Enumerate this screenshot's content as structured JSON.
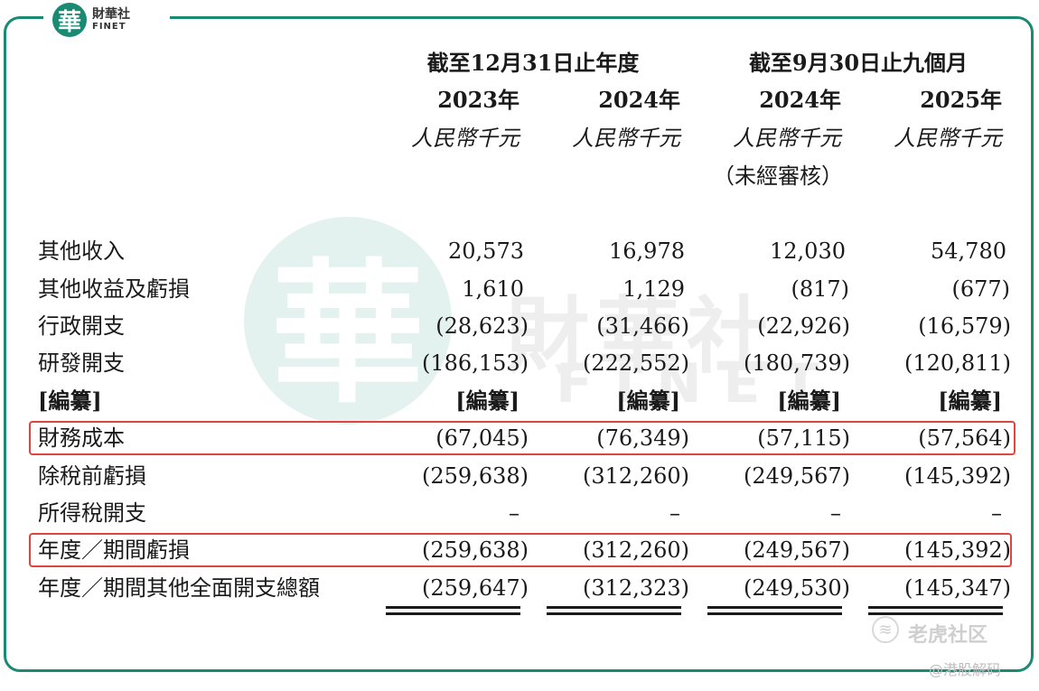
{
  "logo": {
    "mark": "華",
    "cn": "財華社",
    "en": "FINET"
  },
  "watermark": {
    "mark": "華",
    "cn": "財華社",
    "en": "FINET"
  },
  "header": {
    "group1": "截至12月31日止年度",
    "group2": "截至9月30日止九個月",
    "years": [
      "2023年",
      "2024年",
      "2024年",
      "2025年"
    ],
    "units": [
      "人民幣千元",
      "人民幣千元",
      "人民幣千元",
      "人民幣千元"
    ],
    "unaudited": "（未經審核）"
  },
  "rows": [
    {
      "label": "其他收入",
      "values": [
        "20,573",
        "16,978",
        "12,030",
        "54,780"
      ]
    },
    {
      "label": "其他收益及虧損",
      "values": [
        "1,610",
        "1,129",
        "(817)",
        "(677)"
      ]
    },
    {
      "label": "行政開支",
      "values": [
        "(28,623)",
        "(31,466)",
        "(22,926)",
        "(16,579)"
      ]
    },
    {
      "label": "研發開支",
      "values": [
        "(186,153)",
        "(222,552)",
        "(180,739)",
        "(120,811)"
      ]
    },
    {
      "label": "[編纂]",
      "values": [
        "[編纂]",
        "[編纂]",
        "[編纂]",
        "[編纂]"
      ]
    },
    {
      "label": "財務成本",
      "values": [
        "(67,045)",
        "(76,349)",
        "(57,115)",
        "(57,564)"
      ]
    },
    {
      "label": "除稅前虧損",
      "values": [
        "(259,638)",
        "(312,260)",
        "(249,567)",
        "(145,392)"
      ]
    },
    {
      "label": "所得稅開支",
      "values": [
        "–",
        "–",
        "–",
        "–"
      ]
    },
    {
      "label": "年度／期間虧損",
      "values": [
        "(259,638)",
        "(312,260)",
        "(249,567)",
        "(145,392)"
      ]
    },
    {
      "label": "年度／期間其他全面開支總額",
      "values": [
        "(259,647)",
        "(312,323)",
        "(249,530)",
        "(145,347)"
      ]
    }
  ],
  "footer": {
    "icon_glyph": "≋",
    "brand": "老虎社区",
    "tag": "@港股解码"
  },
  "colors": {
    "frame": "#1a8a73",
    "highlight": "#e0443e",
    "watermark": "#dff0ec"
  }
}
